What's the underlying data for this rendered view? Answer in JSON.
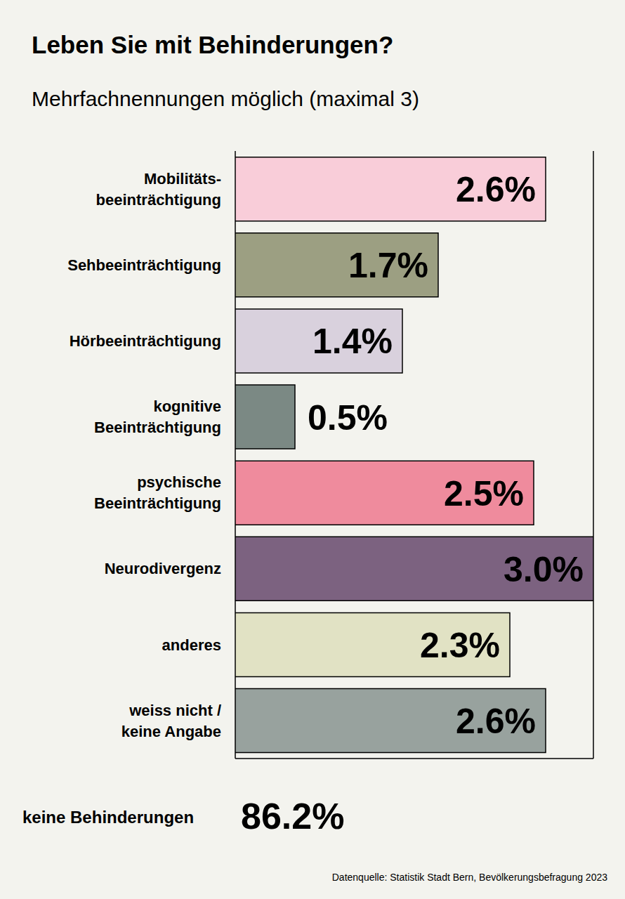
{
  "chart_data": {
    "type": "bar",
    "orientation": "horizontal",
    "title": "Leben Sie mit Behinderungen?",
    "subtitle": "Mehrfachnennungen möglich (maximal 3)",
    "categories": [
      "Mobilitäts-\nbeeinträchtigung",
      "Sehbeeinträchtigung",
      "Hörbeeinträchtigung",
      "kognitive\nBeeinträchtigung",
      "psychische\nBeeinträchtigung",
      "Neurodivergenz",
      "anderes",
      "weiss nicht /\nkeine Angabe"
    ],
    "values": [
      2.6,
      1.7,
      1.4,
      0.5,
      2.5,
      3.0,
      2.3,
      2.6
    ],
    "value_labels": [
      "2.6%",
      "1.7%",
      "1.4%",
      "0.5%",
      "2.5%",
      "3.0%",
      "2.3%",
      "2.6%"
    ],
    "colors": [
      "#f9cdd9",
      "#9c9f82",
      "#d9d1dd",
      "#7b8984",
      "#ef8b9d",
      "#7c6280",
      "#e1e2c4",
      "#98a29e"
    ],
    "xlim": [
      0,
      3
    ],
    "xticks": [
      0,
      1,
      2,
      3
    ],
    "grid": true,
    "data_labels": true,
    "tick_labels": false,
    "annotations": [
      {
        "text": "keine Behinderungen",
        "value": 86.2,
        "value_label": "86.2%"
      }
    ],
    "source": "Datenquelle: Statistik Stadt Bern, Bevölkerungsbefragung 2023"
  }
}
